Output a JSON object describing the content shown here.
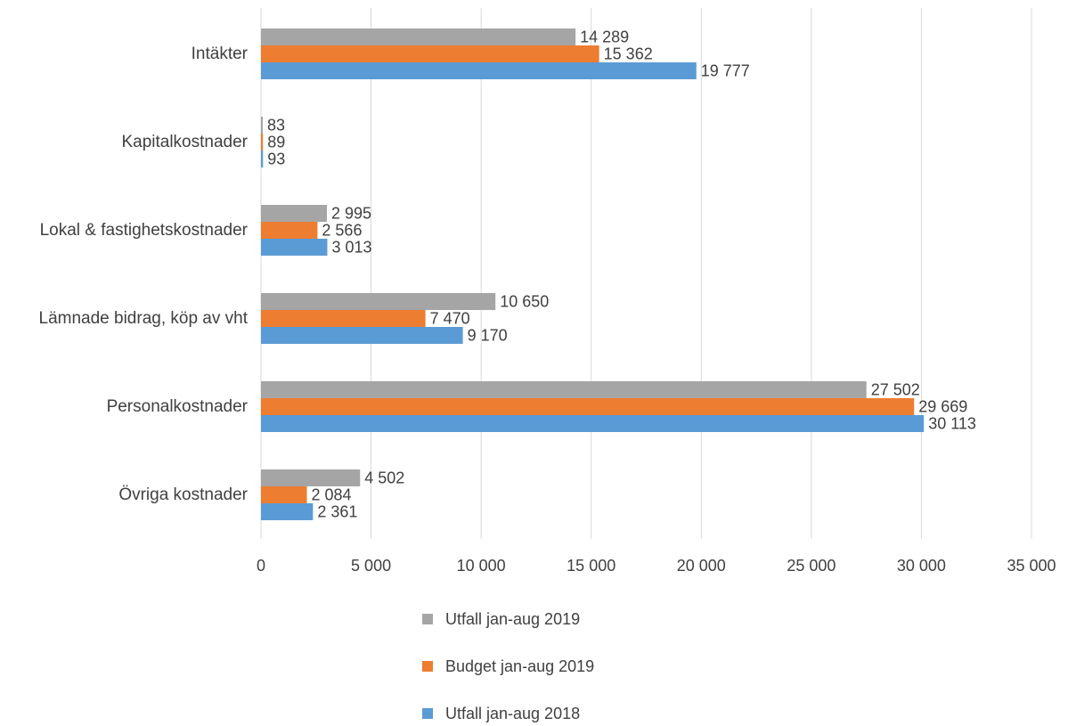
{
  "chart_data": {
    "type": "barh",
    "categories": [
      "Intäkter",
      "Kapitalkostnader",
      "Lokal & fastighetskostnader",
      "Lämnade bidrag, köp av vht",
      "Personalkostnader",
      "Övriga kostnader"
    ],
    "series": [
      {
        "name": "Utfall jan-aug 2019",
        "color": "#a5a5a5",
        "values": [
          14289,
          83,
          2995,
          10650,
          27502,
          4502
        ],
        "value_labels": [
          "14 289",
          "83",
          "2 995",
          "10 650",
          "27 502",
          "4 502"
        ]
      },
      {
        "name": "Budget jan-aug 2019",
        "color": "#ed7d31",
        "values": [
          15362,
          89,
          2566,
          7470,
          29669,
          2084
        ],
        "value_labels": [
          "15 362",
          "89",
          "2 566",
          "7 470",
          "29 669",
          "2 084"
        ]
      },
      {
        "name": "Utfall jan-aug 2018",
        "color": "#5b9bd5",
        "values": [
          19777,
          93,
          3013,
          9170,
          30113,
          2361
        ],
        "value_labels": [
          "19 777",
          "93",
          "3 013",
          "9 170",
          "30 113",
          "2 361"
        ]
      }
    ],
    "xlim": [
      0,
      35000
    ],
    "xticks": [
      0,
      {
        "value": 5000,
        "label": "5 000"
      },
      {
        "value": 10000,
        "label": "10 000"
      },
      {
        "value": 15000,
        "label": "15 000"
      },
      {
        "value": 20000,
        "label": "20 000"
      },
      {
        "value": 25000,
        "label": "25 000"
      },
      {
        "value": 30000,
        "label": "30 000"
      },
      {
        "value": 35000,
        "label": "35 000"
      }
    ],
    "grid": true,
    "legend": "bottom"
  }
}
